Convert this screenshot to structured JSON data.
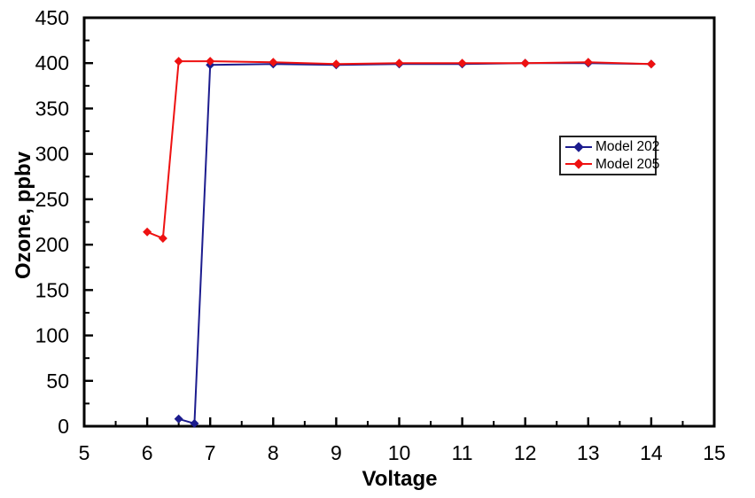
{
  "figure": {
    "background": "#ffffff",
    "frame_color": "#000000"
  },
  "chart_data": {
    "type": "line",
    "title": "",
    "xlabel": "Voltage",
    "ylabel": "Ozone, ppbv",
    "xlim": [
      5,
      15
    ],
    "ylim": [
      0,
      450
    ],
    "x_major_ticks": [
      5,
      6,
      7,
      8,
      9,
      10,
      11,
      12,
      13,
      14,
      15
    ],
    "x_minor_step": 0.5,
    "y_major_ticks": [
      0,
      50,
      100,
      150,
      200,
      250,
      300,
      350,
      400,
      450
    ],
    "y_minor_step": 25,
    "grid": false,
    "legend": {
      "position": "upper-right-inside",
      "border": true,
      "entries": [
        "Model 202",
        "Model 205"
      ]
    },
    "series": [
      {
        "name": "Model 202",
        "color": "#1c1c8e",
        "marker": "diamond",
        "points": [
          [
            6.5,
            8
          ],
          [
            6.75,
            3
          ],
          [
            7,
            398
          ],
          [
            8,
            399
          ],
          [
            9,
            398
          ],
          [
            10,
            399
          ],
          [
            11,
            399
          ],
          [
            12,
            400
          ],
          [
            13,
            400
          ],
          [
            14,
            399
          ]
        ]
      },
      {
        "name": "Model 205",
        "color": "#ee1111",
        "marker": "diamond",
        "points": [
          [
            6,
            214
          ],
          [
            6.25,
            207
          ],
          [
            6.5,
            402
          ],
          [
            7,
            402
          ],
          [
            8,
            401
          ],
          [
            9,
            399
          ],
          [
            10,
            400
          ],
          [
            11,
            400
          ],
          [
            12,
            400
          ],
          [
            13,
            401
          ],
          [
            14,
            399
          ]
        ]
      }
    ]
  }
}
